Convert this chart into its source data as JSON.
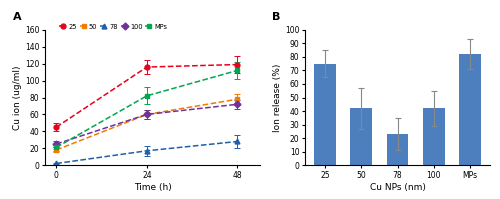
{
  "panel_a": {
    "xlabel": "Time (h)",
    "ylabel": "Cu ion (ug/ml)",
    "xlim": [
      -3,
      54
    ],
    "ylim": [
      0,
      160
    ],
    "yticks": [
      0,
      20,
      40,
      60,
      80,
      100,
      120,
      140,
      160
    ],
    "xticks": [
      0,
      24,
      48
    ],
    "series": [
      {
        "label": "25",
        "color": "#e8001c",
        "marker": "o",
        "x": [
          0,
          24,
          48
        ],
        "y": [
          45,
          116,
          119
        ],
        "yerr": [
          5,
          8,
          10
        ]
      },
      {
        "label": "50",
        "color": "#f07c00",
        "marker": "s",
        "x": [
          0,
          24,
          48
        ],
        "y": [
          18,
          60,
          78
        ],
        "yerr": [
          3,
          5,
          6
        ]
      },
      {
        "label": "78",
        "color": "#1e5faa",
        "marker": "^",
        "x": [
          0,
          24,
          48
        ],
        "y": [
          2,
          17,
          28
        ],
        "yerr": [
          1,
          6,
          8
        ]
      },
      {
        "label": "100",
        "color": "#7030a0",
        "marker": "D",
        "x": [
          0,
          24,
          48
        ],
        "y": [
          25,
          60,
          72
        ],
        "yerr": [
          3,
          5,
          5
        ]
      },
      {
        "label": "MPs",
        "color": "#00a650",
        "marker": "s",
        "x": [
          0,
          24,
          48
        ],
        "y": [
          21,
          82,
          112
        ],
        "yerr": [
          4,
          10,
          10
        ]
      }
    ]
  },
  "panel_b": {
    "xlabel": "Cu NPs (nm)",
    "ylabel": "Ion release (%)",
    "bar_color": "#4d7fbe",
    "categories": [
      "25",
      "50",
      "78",
      "100",
      "MPs"
    ],
    "values": [
      75,
      42,
      23,
      42,
      82
    ],
    "yerr": [
      10,
      15,
      12,
      13,
      11
    ],
    "ylim": [
      0,
      100
    ],
    "yticks": [
      0,
      10,
      20,
      30,
      40,
      50,
      60,
      70,
      80,
      90,
      100
    ]
  }
}
